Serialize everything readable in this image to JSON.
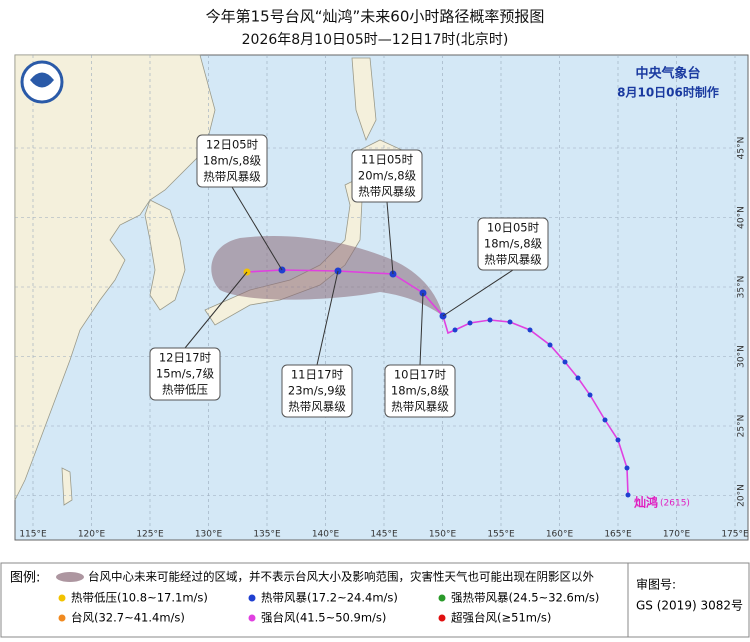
{
  "header": {
    "title": "今年第15号台风“灿鸿”未来60小时路径概率预报图",
    "subtitle": "2026年8月10日05时—12日17时(北京时)"
  },
  "agency": {
    "name": "中央气象台",
    "issued": "8月10日06时制作"
  },
  "forecasts": [
    {
      "time": "10日05时",
      "wind": "18m/s,8级",
      "level": "热带风暴级"
    },
    {
      "time": "10日17时",
      "wind": "18m/s,8级",
      "level": "热带风暴级"
    },
    {
      "time": "11日05时",
      "wind": "20m/s,8级",
      "level": "热带风暴级"
    },
    {
      "time": "11日17时",
      "wind": "23m/s,9级",
      "level": "热带风暴级"
    },
    {
      "time": "12日05时",
      "wind": "18m/s,8级",
      "level": "热带风暴级"
    },
    {
      "time": "12日17时",
      "wind": "15m/s,7级",
      "level": "热带低压"
    }
  ],
  "storm": {
    "name": "灿鸿",
    "number": "(2615)"
  },
  "longitudes": [
    {
      "value": 115,
      "label": "115°E"
    },
    {
      "value": 120,
      "label": "120°E"
    },
    {
      "value": 125,
      "label": "125°E"
    },
    {
      "value": 130,
      "label": "130°E"
    },
    {
      "value": 135,
      "label": "135°E"
    },
    {
      "value": 140,
      "label": "140°E"
    },
    {
      "value": 145,
      "label": "145°E"
    },
    {
      "value": 150,
      "label": "150°E"
    },
    {
      "value": 155,
      "label": "155°E"
    },
    {
      "value": 160,
      "label": "160°E"
    },
    {
      "value": 165,
      "label": "165°E"
    },
    {
      "value": 170,
      "label": "170°E"
    },
    {
      "value": 175,
      "label": "175°E"
    }
  ],
  "latitudes": [
    {
      "value": 20,
      "label": "20°N"
    },
    {
      "value": 25,
      "label": "25°N"
    },
    {
      "value": 30,
      "label": "30°N"
    },
    {
      "value": 35,
      "label": "35°N"
    },
    {
      "value": 40,
      "label": "40°N"
    },
    {
      "value": 45,
      "label": "45°N"
    }
  ],
  "legend": {
    "title": "图例:",
    "cone": "台风中心未来可能经过的区域，并不表示台风大小及影响范围，灾害性天气也可能出现在阴影区以外",
    "items": [
      {
        "text": "热带低压(10.8~17.1m/s)",
        "color": "#f2c200"
      },
      {
        "text": "热带风暴(17.2~24.4m/s)",
        "color": "#1f3fd0"
      },
      {
        "text": "强热带风暴(24.5~32.6m/s)",
        "color": "#2a9a2a"
      },
      {
        "text": "台风(32.7~41.4m/s)",
        "color": "#f08a20"
      },
      {
        "text": "强台风(41.5~50.9m/s)",
        "color": "#e040e0"
      },
      {
        "text": "超强台风(≥51m/s)",
        "color": "#e01010"
      }
    ]
  },
  "approval": {
    "label": "审图号:",
    "number": "GS (2019) 3082号"
  }
}
